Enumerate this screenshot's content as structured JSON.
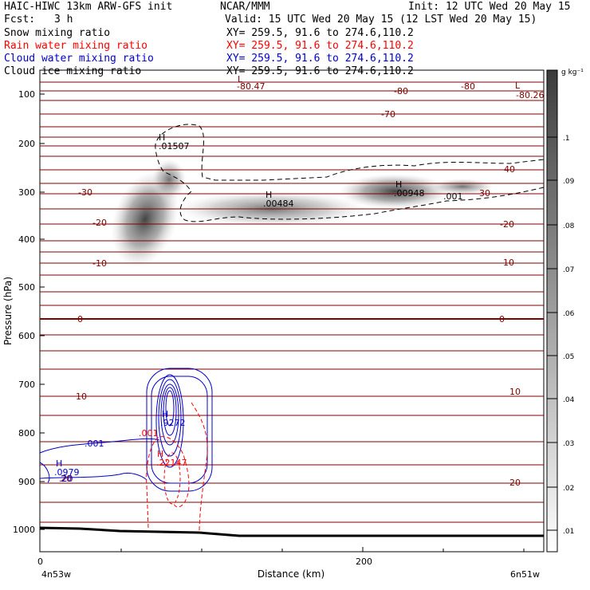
{
  "header": {
    "line1_left": "HAIC-HIWC 13km ARW-GFS init",
    "line1_mid": "NCAR/MMM",
    "line1_right": "Init: 12 UTC Wed 20 May 15",
    "fcst": "Fcst:",
    "fcst_val": "3 h",
    "valid": "Valid: 15 UTC Wed 20 May 15 (12 LST Wed 20 May 15)",
    "fields": [
      {
        "name": "Snow mixing ratio",
        "xy": "XY= 259.5, 91.6 to 274.6,110.2",
        "color": "#000000"
      },
      {
        "name": "Rain water mixing ratio",
        "xy": "XY= 259.5, 91.6 to 274.6,110.2",
        "color": "#ff0000"
      },
      {
        "name": "Cloud water mixing ratio",
        "xy": "XY= 259.5, 91.6 to 274.6,110.2",
        "color": "#0000cc"
      },
      {
        "name": "Cloud ice mixing ratio",
        "xy": "XY= 259.5, 91.6 to 274.6,110.2",
        "color": "#000000"
      }
    ]
  },
  "chart_data": {
    "type": "cross-section",
    "xlabel": "Distance (km)",
    "ylabel": "Pressure (hPa)",
    "x_ticks": [
      "0",
      "200"
    ],
    "x_endpoints": [
      "4n53w",
      "6n51w"
    ],
    "xlim": [
      0,
      312
    ],
    "ylim": [
      1050,
      50
    ],
    "y_ticks": [
      100,
      200,
      300,
      400,
      500,
      600,
      700,
      800,
      900,
      1000
    ],
    "colorbar": {
      "unit": "g kg⁻¹",
      "levels": [
        ".01",
        ".02",
        ".03",
        ".04",
        ".05",
        ".06",
        ".07",
        ".08",
        ".09",
        ".1"
      ]
    },
    "temperature_contours": {
      "color": "#800000",
      "labels": [
        "-80.47",
        "-80",
        "-80",
        "-80.26",
        "-70",
        "-40",
        "-30",
        "-30",
        "-20",
        "-20",
        "-10",
        "-10",
        "0",
        "0",
        "10",
        "10",
        "20",
        "20"
      ]
    },
    "maxima": [
      {
        "mark": "H",
        "value": ".01507",
        "field": "snow"
      },
      {
        "mark": "H",
        "value": ".00484",
        "field": "snow"
      },
      {
        "mark": "H",
        "value": ".00948",
        "field": "snow"
      },
      {
        "mark": "H",
        "value": ".9272",
        "field": "cloud water"
      },
      {
        "mark": "H",
        "value": ".2",
        "field": "rain"
      },
      {
        "mark": "H",
        "value": ".0979",
        "field": "cloud water"
      },
      {
        "mark": "L",
        "value": "-80.47",
        "field": "temperature"
      },
      {
        "mark": "L",
        "value": "-80.26",
        "field": "temperature"
      }
    ],
    "contour_labels": {
      "snow": ".001",
      "cloud_water": [
        ".001",
        ".20"
      ],
      "rain": ".001",
      "rain_max_label": ".22147"
    }
  }
}
